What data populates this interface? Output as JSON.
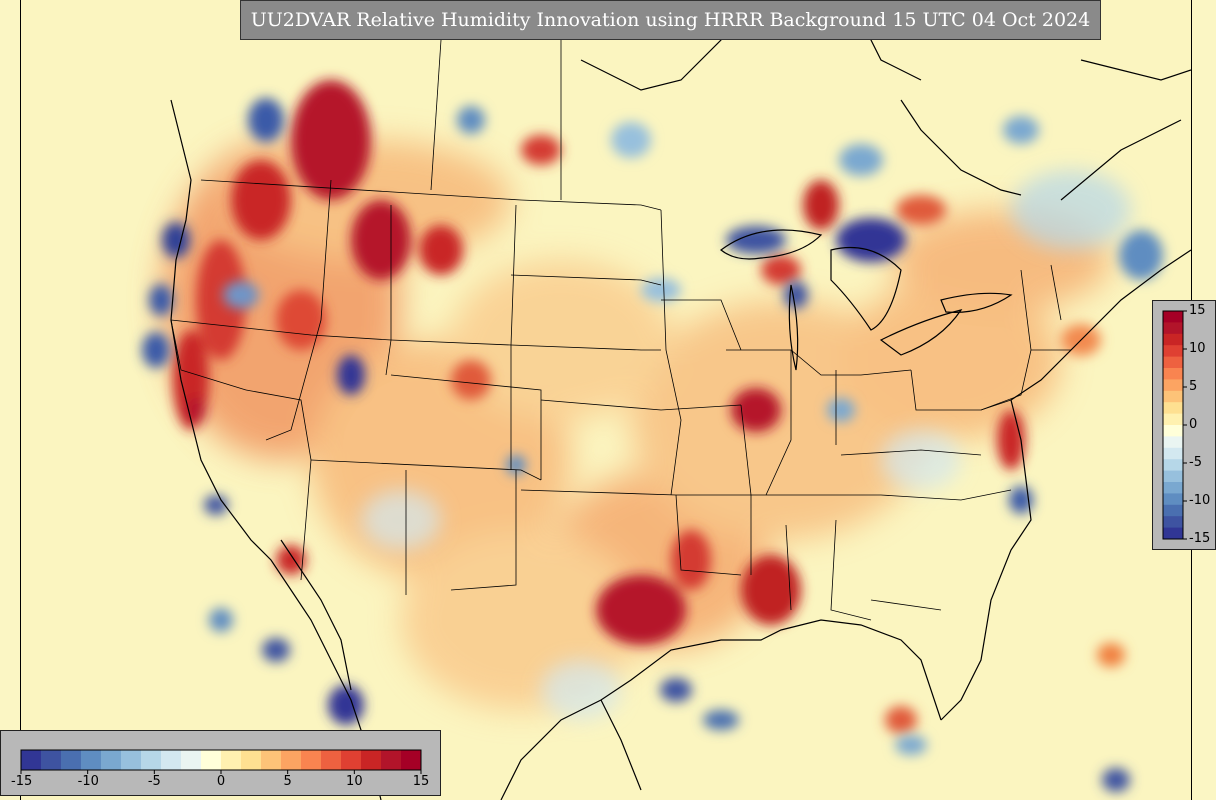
{
  "title": "UU2DVAR Relative Humidity Innovation using HRRR Background 15 UTC 04 Oct 2024",
  "colorbar": {
    "min": -15,
    "max": 15,
    "horizontal_ticks": [
      "-15",
      "-10",
      "-5",
      "0",
      "5",
      "10",
      "15"
    ],
    "vertical_ticks": [
      "15",
      "10",
      "5",
      "0",
      "-5",
      "-10",
      "-15"
    ],
    "colors": [
      "#313695",
      "#3e53a1",
      "#4a6fb0",
      "#5f8dc1",
      "#7aa8d0",
      "#97c0dd",
      "#b6d7e8",
      "#d3e8f0",
      "#eaf5f2",
      "#ffffd9",
      "#fff1b0",
      "#fee091",
      "#fdc378",
      "#fca462",
      "#f98450",
      "#ee6140",
      "#df4032",
      "#c92525",
      "#b2142a",
      "#a50026"
    ]
  },
  "map": {
    "description_layers": [
      "state-borders",
      "coastlines",
      "lakes"
    ],
    "colors": {
      "background": "#fbf5c0",
      "positive": "#b5152a",
      "negative": "#3a5aa8"
    }
  }
}
